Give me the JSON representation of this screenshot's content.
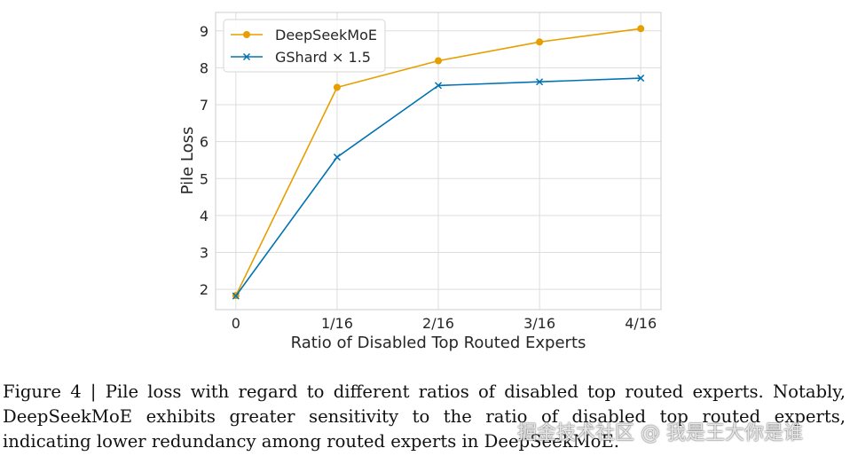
{
  "chart_data": {
    "type": "line",
    "title": "",
    "xlabel": "Ratio of Disabled Top Routed Experts",
    "ylabel": "Pile Loss",
    "categories": [
      "0",
      "1/16",
      "2/16",
      "3/16",
      "4/16"
    ],
    "yticks": [
      2,
      3,
      4,
      5,
      6,
      7,
      8,
      9
    ],
    "ylim": [
      1.45,
      9.5
    ],
    "grid": true,
    "legend_position": "top-left",
    "series": [
      {
        "name": "DeepSeekMoE",
        "color": "#e69f00",
        "marker": "circle",
        "values": [
          1.83,
          7.47,
          8.19,
          8.7,
          9.06
        ]
      },
      {
        "name": "GShard × 1.5",
        "color": "#0173b2",
        "marker": "x",
        "values": [
          1.82,
          5.58,
          7.52,
          7.62,
          7.72
        ]
      }
    ]
  },
  "caption": {
    "text": "Figure 4 | Pile loss with regard to different ratios of disabled top routed experts. Notably, DeepSeekMoE exhibits greater sensitivity to the ratio of disabled top routed experts, indicating lower redundancy among routed experts in DeepSeekMoE."
  },
  "watermark": "掘金技术社区 @ 我是王大你是谁"
}
